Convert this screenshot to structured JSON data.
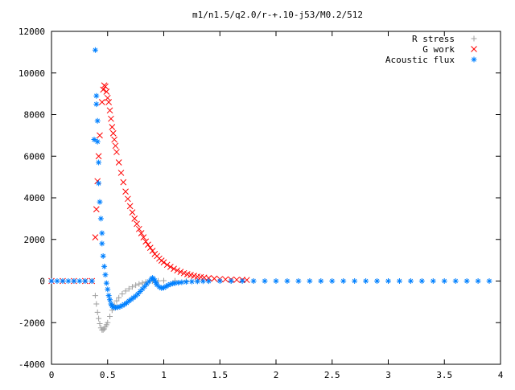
{
  "chart_data": {
    "type": "scatter",
    "title": "m1/n1.5/q2.0/r-+.10-j53/M0.2/512",
    "xlabel": "",
    "ylabel": "",
    "xlim": [
      0,
      4
    ],
    "ylim": [
      -4000,
      12000
    ],
    "x_ticks": [
      "0",
      "0.5",
      "1",
      "1.5",
      "2",
      "2.5",
      "3",
      "3.5",
      "4"
    ],
    "y_ticks": [
      "-4000",
      "-2000",
      "0",
      "2000",
      "4000",
      "6000",
      "8000",
      "10000",
      "12000"
    ],
    "grid": false,
    "legend_position": "top-right",
    "series": [
      {
        "name": "R stress",
        "marker": "plus",
        "color": "#a0a0a0",
        "points": [
          [
            0.0,
            0
          ],
          [
            0.1,
            0
          ],
          [
            0.2,
            0
          ],
          [
            0.3,
            0
          ],
          [
            0.36,
            0
          ],
          [
            0.39,
            -700
          ],
          [
            0.4,
            -1100
          ],
          [
            0.41,
            -1500
          ],
          [
            0.42,
            -1800
          ],
          [
            0.43,
            -2050
          ],
          [
            0.44,
            -2250
          ],
          [
            0.45,
            -2350
          ],
          [
            0.46,
            -2350
          ],
          [
            0.47,
            -2300
          ],
          [
            0.48,
            -2200
          ],
          [
            0.49,
            -2100
          ],
          [
            0.5,
            -2000
          ],
          [
            0.52,
            -1700
          ],
          [
            0.54,
            -1400
          ],
          [
            0.56,
            -1150
          ],
          [
            0.58,
            -950
          ],
          [
            0.6,
            -800
          ],
          [
            0.63,
            -620
          ],
          [
            0.66,
            -480
          ],
          [
            0.69,
            -370
          ],
          [
            0.72,
            -280
          ],
          [
            0.75,
            -200
          ],
          [
            0.78,
            -140
          ],
          [
            0.81,
            -90
          ],
          [
            0.84,
            -50
          ],
          [
            0.87,
            -20
          ],
          [
            0.9,
            -5
          ],
          [
            0.95,
            10
          ],
          [
            1.0,
            20
          ],
          [
            1.1,
            15
          ],
          [
            1.2,
            10
          ],
          [
            1.3,
            5
          ],
          [
            1.4,
            0
          ],
          [
            1.6,
            0
          ],
          [
            1.8,
            0
          ]
        ]
      },
      {
        "name": "G work",
        "marker": "cross",
        "color": "#ff0000",
        "points": [
          [
            0.0,
            0
          ],
          [
            0.1,
            0
          ],
          [
            0.2,
            0
          ],
          [
            0.3,
            0
          ],
          [
            0.36,
            0
          ],
          [
            0.39,
            2100
          ],
          [
            0.4,
            3450
          ],
          [
            0.41,
            4800
          ],
          [
            0.42,
            6000
          ],
          [
            0.43,
            7000
          ],
          [
            0.45,
            8600
          ],
          [
            0.46,
            9200
          ],
          [
            0.47,
            9400
          ],
          [
            0.48,
            9350
          ],
          [
            0.49,
            9100
          ],
          [
            0.5,
            8800
          ],
          [
            0.51,
            8600
          ],
          [
            0.52,
            8200
          ],
          [
            0.53,
            7800
          ],
          [
            0.54,
            7400
          ],
          [
            0.55,
            7100
          ],
          [
            0.56,
            6800
          ],
          [
            0.57,
            6500
          ],
          [
            0.58,
            6200
          ],
          [
            0.6,
            5700
          ],
          [
            0.62,
            5200
          ],
          [
            0.64,
            4750
          ],
          [
            0.66,
            4300
          ],
          [
            0.68,
            3950
          ],
          [
            0.7,
            3600
          ],
          [
            0.72,
            3300
          ],
          [
            0.74,
            3000
          ],
          [
            0.76,
            2750
          ],
          [
            0.78,
            2500
          ],
          [
            0.8,
            2300
          ],
          [
            0.82,
            2100
          ],
          [
            0.84,
            1900
          ],
          [
            0.86,
            1750
          ],
          [
            0.88,
            1600
          ],
          [
            0.9,
            1450
          ],
          [
            0.92,
            1300
          ],
          [
            0.94,
            1200
          ],
          [
            0.96,
            1080
          ],
          [
            0.98,
            980
          ],
          [
            1.0,
            900
          ],
          [
            1.03,
            780
          ],
          [
            1.06,
            680
          ],
          [
            1.09,
            590
          ],
          [
            1.12,
            510
          ],
          [
            1.15,
            440
          ],
          [
            1.18,
            380
          ],
          [
            1.21,
            330
          ],
          [
            1.24,
            290
          ],
          [
            1.27,
            250
          ],
          [
            1.3,
            215
          ],
          [
            1.33,
            190
          ],
          [
            1.36,
            165
          ],
          [
            1.4,
            140
          ],
          [
            1.45,
            115
          ],
          [
            1.5,
            95
          ],
          [
            1.55,
            80
          ],
          [
            1.6,
            70
          ],
          [
            1.65,
            60
          ],
          [
            1.7,
            55
          ],
          [
            1.74,
            50
          ]
        ]
      },
      {
        "name": "Acoustic flux",
        "marker": "star",
        "color": "#0080ff",
        "points": [
          [
            0.0,
            0
          ],
          [
            0.05,
            0
          ],
          [
            0.1,
            0
          ],
          [
            0.15,
            0
          ],
          [
            0.2,
            0
          ],
          [
            0.25,
            0
          ],
          [
            0.3,
            0
          ],
          [
            0.36,
            0
          ],
          [
            0.38,
            6800
          ],
          [
            0.39,
            11100
          ],
          [
            0.4,
            8900
          ],
          [
            0.4,
            8500
          ],
          [
            0.41,
            7700
          ],
          [
            0.41,
            6700
          ],
          [
            0.42,
            5700
          ],
          [
            0.42,
            4700
          ],
          [
            0.43,
            3800
          ],
          [
            0.44,
            3000
          ],
          [
            0.45,
            2300
          ],
          [
            0.45,
            1800
          ],
          [
            0.46,
            1200
          ],
          [
            0.47,
            700
          ],
          [
            0.48,
            300
          ],
          [
            0.49,
            -100
          ],
          [
            0.5,
            -400
          ],
          [
            0.51,
            -700
          ],
          [
            0.52,
            -900
          ],
          [
            0.53,
            -1100
          ],
          [
            0.54,
            -1200
          ],
          [
            0.55,
            -1250
          ],
          [
            0.57,
            -1280
          ],
          [
            0.59,
            -1260
          ],
          [
            0.61,
            -1230
          ],
          [
            0.63,
            -1180
          ],
          [
            0.65,
            -1120
          ],
          [
            0.67,
            -1050
          ],
          [
            0.69,
            -960
          ],
          [
            0.71,
            -880
          ],
          [
            0.73,
            -800
          ],
          [
            0.75,
            -720
          ],
          [
            0.77,
            -620
          ],
          [
            0.79,
            -500
          ],
          [
            0.81,
            -380
          ],
          [
            0.83,
            -260
          ],
          [
            0.85,
            -140
          ],
          [
            0.87,
            -20
          ],
          [
            0.89,
            100
          ],
          [
            0.9,
            150
          ],
          [
            0.91,
            100
          ],
          [
            0.92,
            20
          ],
          [
            0.93,
            -80
          ],
          [
            0.94,
            -180
          ],
          [
            0.96,
            -280
          ],
          [
            0.98,
            -340
          ],
          [
            1.0,
            -320
          ],
          [
            1.02,
            -260
          ],
          [
            1.04,
            -200
          ],
          [
            1.06,
            -150
          ],
          [
            1.08,
            -120
          ],
          [
            1.1,
            -100
          ],
          [
            1.13,
            -80
          ],
          [
            1.16,
            -60
          ],
          [
            1.2,
            -40
          ],
          [
            1.25,
            -25
          ],
          [
            1.3,
            -15
          ],
          [
            1.35,
            -10
          ],
          [
            1.4,
            -5
          ],
          [
            1.5,
            0
          ],
          [
            1.6,
            0
          ],
          [
            1.7,
            0
          ],
          [
            1.8,
            0
          ],
          [
            1.9,
            0
          ],
          [
            2.0,
            0
          ],
          [
            2.1,
            0
          ],
          [
            2.2,
            0
          ],
          [
            2.3,
            0
          ],
          [
            2.4,
            0
          ],
          [
            2.5,
            0
          ],
          [
            2.6,
            0
          ],
          [
            2.7,
            0
          ],
          [
            2.8,
            0
          ],
          [
            2.9,
            0
          ],
          [
            3.0,
            0
          ],
          [
            3.1,
            0
          ],
          [
            3.2,
            0
          ],
          [
            3.3,
            0
          ],
          [
            3.4,
            0
          ],
          [
            3.5,
            0
          ],
          [
            3.6,
            0
          ],
          [
            3.7,
            0
          ],
          [
            3.8,
            0
          ],
          [
            3.9,
            0
          ]
        ]
      }
    ]
  }
}
